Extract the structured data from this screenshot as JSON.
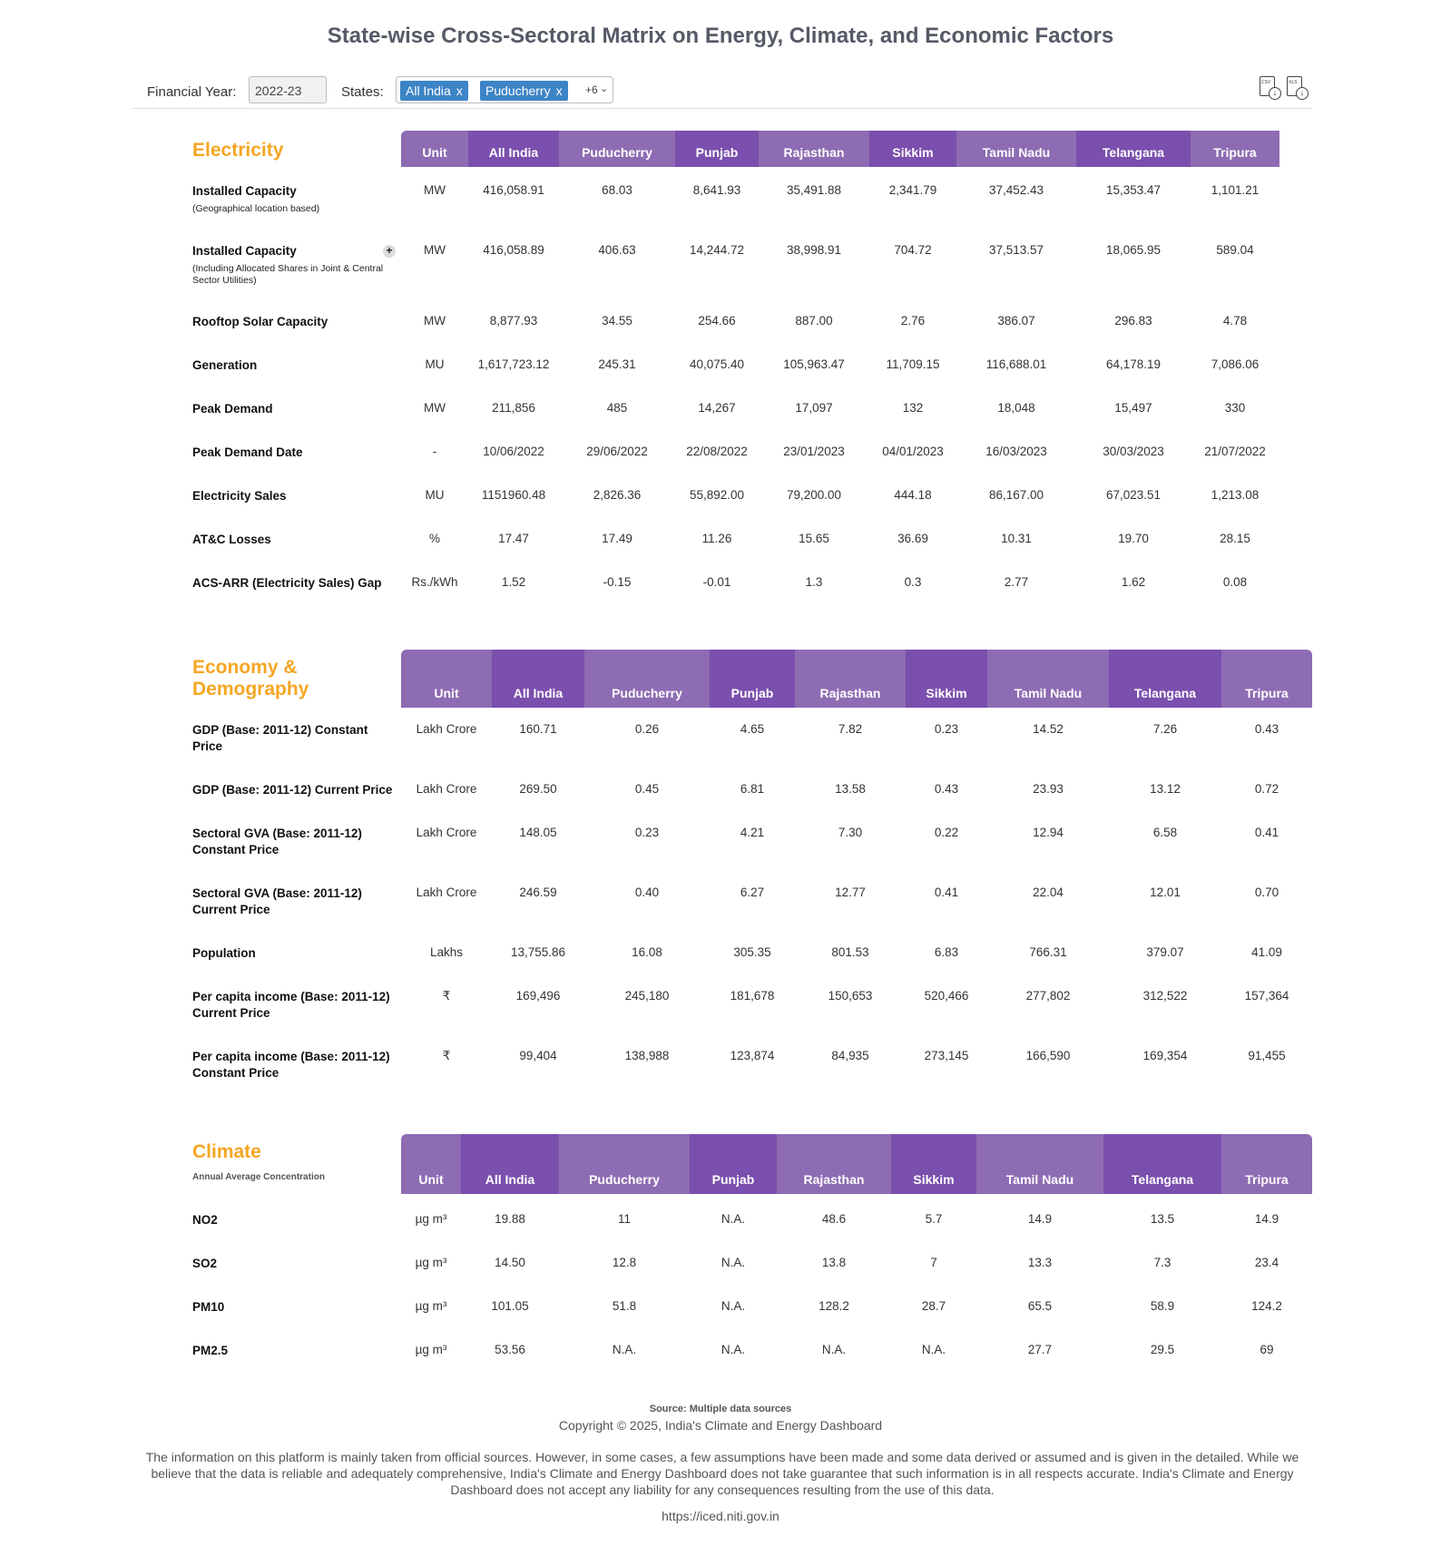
{
  "title": "State-wise Cross-Sectoral Matrix on Energy, Climate, and Economic Factors",
  "filters": {
    "fy_label": "Financial Year:",
    "fy_value": "2022-23",
    "states_label": "States:",
    "chips": [
      "All India",
      "Puducherry"
    ],
    "chip_remove": "x",
    "more": "+6",
    "caret": "⌄",
    "download_csv_label": "CSV",
    "download_xls_label": "XLS",
    "download_glyph": "↓"
  },
  "columns": [
    "All India",
    "Puducherry",
    "Punjab",
    "Rajasthan",
    "Sikkim",
    "Tamil Nadu",
    "Telangana",
    "Tripura"
  ],
  "unit_header": "Unit",
  "electricity": {
    "title": "Electricity",
    "expand_glyph": "+",
    "rows": [
      {
        "label": "Installed Capacity",
        "sub": "(Geographical location based)",
        "unit": "MW",
        "values": [
          "416,058.91",
          "68.03",
          "8,641.93",
          "35,491.88",
          "2,341.79",
          "37,452.43",
          "15,353.47",
          "1,101.21"
        ]
      },
      {
        "label": "Installed Capacity",
        "sub": "(Including Allocated Shares in Joint & Central Sector Utilities)",
        "unit": "MW",
        "values": [
          "416,058.89",
          "406.63",
          "14,244.72",
          "38,998.91",
          "704.72",
          "37,513.57",
          "18,065.95",
          "589.04"
        ]
      },
      {
        "label": "Rooftop Solar Capacity",
        "sub": "",
        "unit": "MW",
        "values": [
          "8,877.93",
          "34.55",
          "254.66",
          "887.00",
          "2.76",
          "386.07",
          "296.83",
          "4.78"
        ]
      },
      {
        "label": "Generation",
        "sub": "",
        "unit": "MU",
        "values": [
          "1,617,723.12",
          "245.31",
          "40,075.40",
          "105,963.47",
          "11,709.15",
          "116,688.01",
          "64,178.19",
          "7,086.06"
        ]
      },
      {
        "label": "Peak Demand",
        "sub": "",
        "unit": "MW",
        "values": [
          "211,856",
          "485",
          "14,267",
          "17,097",
          "132",
          "18,048",
          "15,497",
          "330"
        ]
      },
      {
        "label": "Peak Demand Date",
        "sub": "",
        "unit": "-",
        "values": [
          "10/06/2022",
          "29/06/2022",
          "22/08/2022",
          "23/01/2023",
          "04/01/2023",
          "16/03/2023",
          "30/03/2023",
          "21/07/2022"
        ]
      },
      {
        "label": "Electricity Sales",
        "sub": "",
        "unit": "MU",
        "values": [
          "1151960.48",
          "2,826.36",
          "55,892.00",
          "79,200.00",
          "444.18",
          "86,167.00",
          "67,023.51",
          "1,213.08"
        ]
      },
      {
        "label": "AT&C Losses",
        "sub": "",
        "unit": "%",
        "values": [
          "17.47",
          "17.49",
          "11.26",
          "15.65",
          "36.69",
          "10.31",
          "19.70",
          "28.15"
        ]
      },
      {
        "label": "ACS-ARR (Electricity Sales) Gap",
        "sub": "",
        "unit": "Rs./kWh",
        "values": [
          "1.52",
          "-0.15",
          "-0.01",
          "1.3",
          "0.3",
          "2.77",
          "1.62",
          "0.08"
        ]
      }
    ]
  },
  "economy": {
    "title_line1": "Economy &",
    "title_line2": "Demography",
    "rows": [
      {
        "label": "GDP (Base: 2011-12) Constant Price",
        "unit": "Lakh Crore",
        "values": [
          "160.71",
          "0.26",
          "4.65",
          "7.82",
          "0.23",
          "14.52",
          "7.26",
          "0.43"
        ]
      },
      {
        "label": "GDP (Base: 2011-12) Current Price",
        "unit": "Lakh Crore",
        "values": [
          "269.50",
          "0.45",
          "6.81",
          "13.58",
          "0.43",
          "23.93",
          "13.12",
          "0.72"
        ]
      },
      {
        "label": "Sectoral GVA (Base: 2011-12) Constant Price",
        "unit": "Lakh Crore",
        "values": [
          "148.05",
          "0.23",
          "4.21",
          "7.30",
          "0.22",
          "12.94",
          "6.58",
          "0.41"
        ]
      },
      {
        "label": "Sectoral GVA (Base: 2011-12) Current Price",
        "unit": "Lakh Crore",
        "values": [
          "246.59",
          "0.40",
          "6.27",
          "12.77",
          "0.41",
          "22.04",
          "12.01",
          "0.70"
        ]
      },
      {
        "label": "Population",
        "unit": "Lakhs",
        "values": [
          "13,755.86",
          "16.08",
          "305.35",
          "801.53",
          "6.83",
          "766.31",
          "379.07",
          "41.09"
        ]
      },
      {
        "label": "Per capita income (Base: 2011-12) Current Price",
        "unit": "₹",
        "values": [
          "169,496",
          "245,180",
          "181,678",
          "150,653",
          "520,466",
          "277,802",
          "312,522",
          "157,364"
        ]
      },
      {
        "label": "Per capita income (Base: 2011-12) Constant Price",
        "unit": "₹",
        "values": [
          "99,404",
          "138,988",
          "123,874",
          "84,935",
          "273,145",
          "166,590",
          "169,354",
          "91,455"
        ]
      }
    ]
  },
  "climate": {
    "title": "Climate",
    "subtitle": "Annual Average Concentration",
    "rows": [
      {
        "label": "NO2",
        "unit": "µg m³",
        "values": [
          "19.88",
          "11",
          "N.A.",
          "48.6",
          "5.7",
          "14.9",
          "13.5",
          "14.9"
        ]
      },
      {
        "label": "SO2",
        "unit": "µg m³",
        "values": [
          "14.50",
          "12.8",
          "N.A.",
          "13.8",
          "7",
          "13.3",
          "7.3",
          "23.4"
        ]
      },
      {
        "label": "PM10",
        "unit": "µg m³",
        "values": [
          "101.05",
          "51.8",
          "N.A.",
          "128.2",
          "28.7",
          "65.5",
          "58.9",
          "124.2"
        ]
      },
      {
        "label": "PM2.5",
        "unit": "µg m³",
        "values": [
          "53.56",
          "N.A.",
          "N.A.",
          "N.A.",
          "N.A.",
          "27.7",
          "29.5",
          "69"
        ]
      }
    ]
  },
  "footer": {
    "source": "Source: Multiple data sources",
    "copyright": "Copyright © 2025, India's Climate and Energy Dashboard",
    "disclaimer": "The information on this platform is mainly taken from official sources. However, in some cases, a few assumptions have been made and some data derived or assumed and is given in the detailed. While we believe that the data is reliable and adequately comprehensive, India's Climate and Energy Dashboard does not take guarantee that such information is in all respects accurate. India's Climate and Energy Dashboard does not accept any liability for any consequences resulting from the use of this data.",
    "url": "https://iced.niti.gov.in"
  },
  "colors": {
    "header_light": "#8e6cb3",
    "header_dark": "#7b4fad",
    "section_title": "#f5a623",
    "chip": "#3d84c6"
  }
}
